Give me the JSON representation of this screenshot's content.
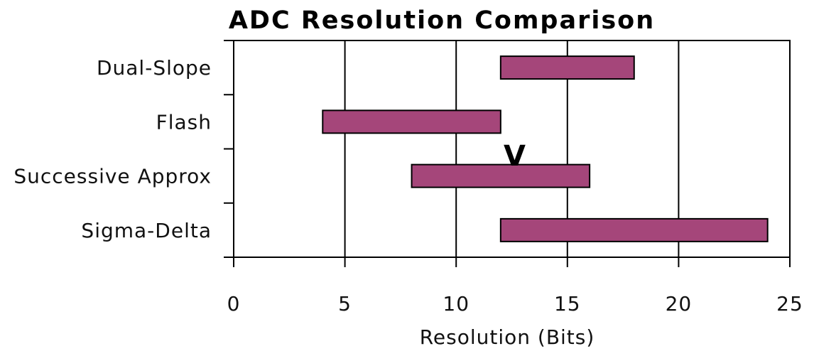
{
  "chart_data": {
    "type": "bar",
    "orientation": "horizontal-range",
    "title": "ADC Resolution Comparison",
    "xlabel": "Resolution (Bits)",
    "ylabel": "",
    "xlim": [
      0,
      25
    ],
    "xticks": [
      0,
      5,
      10,
      15,
      20,
      25
    ],
    "grid": true,
    "categories": [
      "Dual-Slope",
      "Flash",
      "Successive Approx",
      "Sigma-Delta"
    ],
    "ranges": [
      {
        "category": "Dual-Slope",
        "start": 12,
        "end": 18
      },
      {
        "category": "Flash",
        "start": 4,
        "end": 12
      },
      {
        "category": "Successive Approx",
        "start": 8,
        "end": 16
      },
      {
        "category": "Sigma-Delta",
        "start": 12,
        "end": 24
      }
    ],
    "annotation": {
      "text": "V",
      "x": 12.5
    },
    "bar_color": "#a5467a"
  }
}
